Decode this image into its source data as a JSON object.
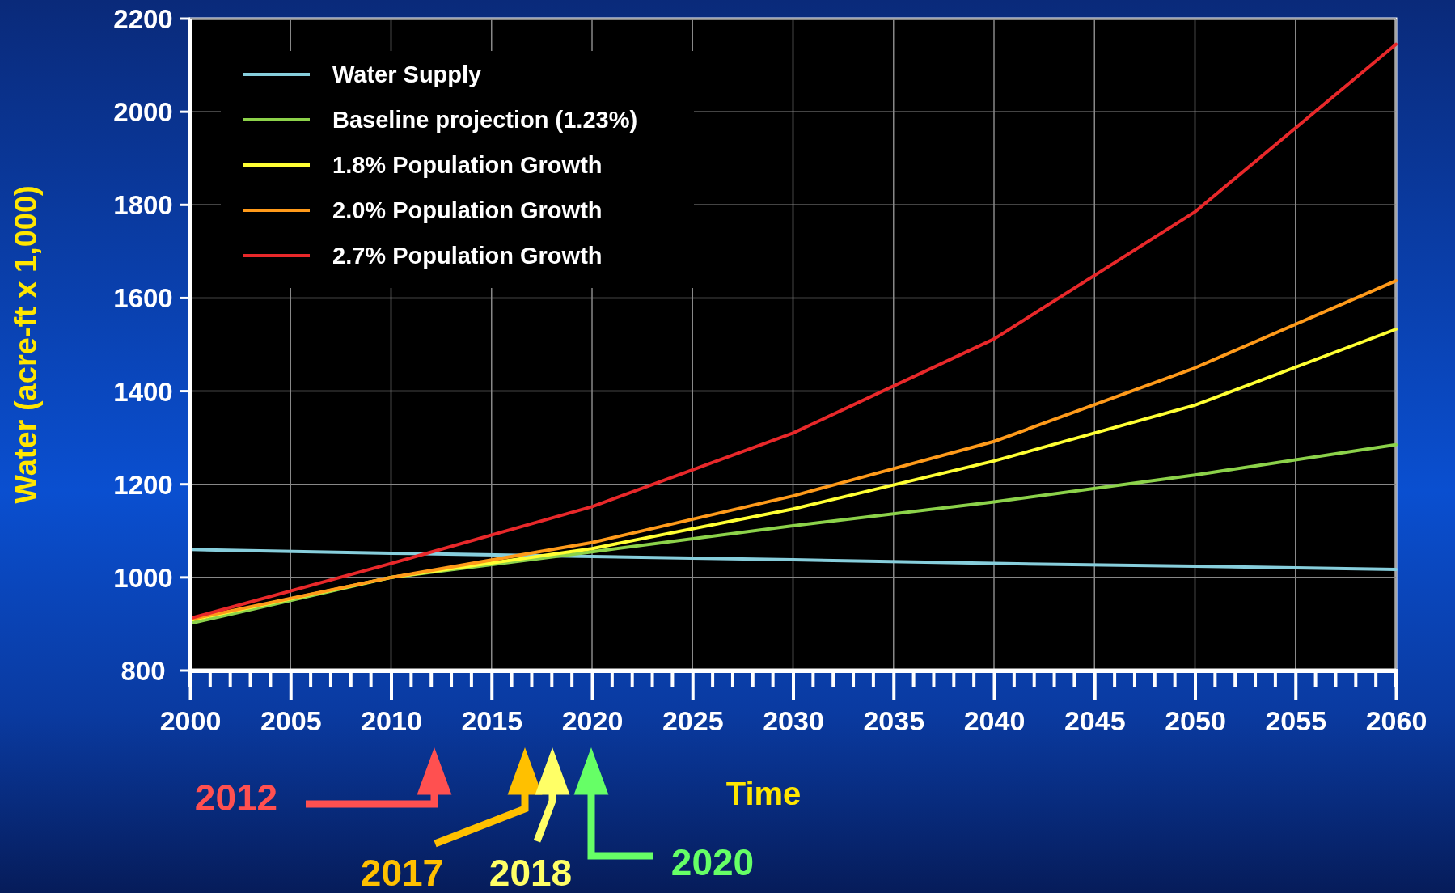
{
  "chart_data": {
    "type": "line",
    "xlabel": "Time",
    "ylabel": "Water (acre-ft x 1,000)",
    "x": [
      2000,
      2010,
      2020,
      2030,
      2040,
      2050,
      2060
    ],
    "series": [
      {
        "name": "Water Supply",
        "color": "#87cedc",
        "values": [
          1060,
          1052,
          1045,
          1038,
          1030,
          1024,
          1017
        ]
      },
      {
        "name": "Baseline projection (1.23%)",
        "color": "#8cd24a",
        "values": [
          901,
          1000,
          1055,
          1111,
          1162,
          1220,
          1285
        ]
      },
      {
        "name": "1.8% Population Growth",
        "color": "#ffff33",
        "values": [
          908,
          1000,
          1062,
          1147,
          1250,
          1370,
          1533
        ]
      },
      {
        "name": "2.0% Population Growth",
        "color": "#ff9a1a",
        "values": [
          910,
          1000,
          1075,
          1175,
          1292,
          1450,
          1637
        ]
      },
      {
        "name": "2.7% Population Growth",
        "color": "#e8282a",
        "values": [
          912,
          1030,
          1152,
          1310,
          1512,
          1785,
          2145
        ]
      }
    ],
    "xlim": [
      2000,
      2060
    ],
    "xticks": [
      2000,
      2005,
      2010,
      2015,
      2020,
      2025,
      2030,
      2035,
      2040,
      2045,
      2050,
      2055,
      2060
    ],
    "ylim": [
      800,
      2200
    ],
    "yticks": [
      800,
      1000,
      1200,
      1400,
      1600,
      1800,
      2000,
      2200
    ],
    "grid": true,
    "legend": "top left",
    "marker": "none",
    "line_style": "solid",
    "annotations": [
      "2012",
      "2017",
      "2018",
      "2020"
    ]
  }
}
